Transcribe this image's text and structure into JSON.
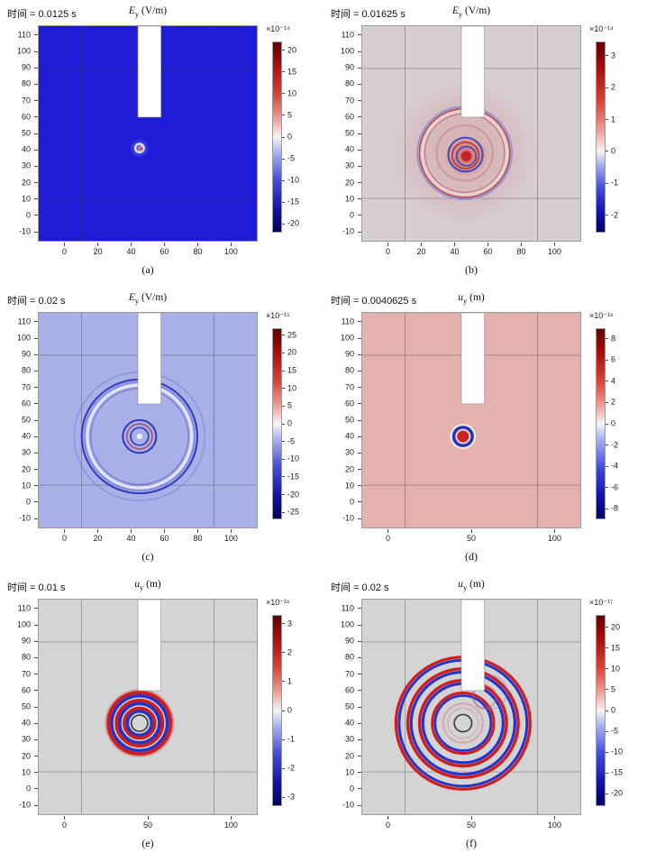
{
  "figure": {
    "background": "#ffffff"
  },
  "chart_data": [
    {
      "type": "heatmap",
      "panel": "a",
      "caption": "(a)",
      "time_label": "时间 = 0.0125 s",
      "field": {
        "symbol": "E",
        "sub": "y",
        "unit": " (V/m)"
      },
      "x_ticks": [
        0,
        20,
        40,
        60,
        80,
        100
      ],
      "y_ticks": [
        110,
        100,
        90,
        80,
        70,
        60,
        50,
        40,
        30,
        20,
        10,
        0,
        -10
      ],
      "x_range": [
        -16,
        116
      ],
      "y_range": [
        -16,
        116
      ],
      "bg": "#1e1cd6",
      "grid_x": [
        10,
        90
      ],
      "grid_y": [
        10,
        90
      ],
      "slot": {
        "x1": 44,
        "x2": 58,
        "y_bottom": 60
      },
      "wave_center": [
        45,
        40
      ],
      "colorbar": {
        "exp": "×10⁻¹⁴",
        "min": -22,
        "max": 22,
        "ticks": [
          20,
          15,
          10,
          5,
          0,
          -5,
          -10,
          -15,
          -20
        ]
      },
      "features": [
        {
          "t": "glow",
          "cx": 45,
          "cy": 41,
          "r": 6,
          "c": "130,160,255",
          "a": 0.5
        },
        {
          "t": "ring",
          "cx": 45,
          "cy": 41,
          "r": 2.6,
          "s": "#dfe6ff",
          "w": 1.3
        },
        {
          "t": "ring",
          "cx": 45.8,
          "cy": 40.6,
          "r": 1.3,
          "s": "#ff8a70",
          "w": 0.9
        }
      ]
    },
    {
      "type": "heatmap",
      "panel": "b",
      "caption": "(b)",
      "time_label": "时间 = 0.01625 s",
      "field": {
        "symbol": "E",
        "sub": "y",
        "unit": " (V/m)"
      },
      "x_ticks": [
        0,
        20,
        40,
        60,
        80,
        100
      ],
      "y_ticks": [
        110,
        100,
        90,
        80,
        70,
        60,
        50,
        40,
        30,
        20,
        10,
        0,
        -10
      ],
      "x_range": [
        -16,
        116
      ],
      "y_range": [
        -16,
        116
      ],
      "bg": "#d7ced4",
      "grid_x": [
        10,
        90
      ],
      "grid_y": [
        10,
        90
      ],
      "slot": {
        "x1": 44,
        "x2": 58,
        "y_bottom": 60
      },
      "wave_center": [
        46,
        38
      ],
      "colorbar": {
        "exp": "×10⁻¹⁴",
        "min": -2.55,
        "max": 3.45,
        "ticks": [
          3,
          2,
          1,
          0,
          -1,
          -2
        ]
      },
      "features": [
        {
          "t": "glow",
          "cx": 46,
          "cy": 38,
          "r": 46,
          "c": "215,125,118",
          "a": 0.4
        },
        {
          "t": "glow",
          "cx": 47,
          "cy": 36,
          "r": 13,
          "c": "205,62,55",
          "a": 0.55
        },
        {
          "t": "ring",
          "cx": 46,
          "cy": 38,
          "r": 28.6,
          "s": "#8a92d8",
          "w": 0.9
        },
        {
          "t": "ring",
          "cx": 46,
          "cy": 38,
          "r": 27.4,
          "s": "#b14a55",
          "w": 0.9
        },
        {
          "t": "ring",
          "cx": 46,
          "cy": 38,
          "r": 25.6,
          "s": "rgba(236,210,214,0.95)",
          "w": 1.6
        },
        {
          "t": "ring",
          "cx": 46,
          "cy": 38,
          "r": 24.2,
          "s": "rgba(177,74,85,0.5)",
          "w": 0.8
        },
        {
          "t": "ring",
          "cx": 46,
          "cy": 38,
          "r": 17,
          "s": "rgba(180,90,100,0.3)",
          "w": 1.2
        },
        {
          "t": "ring",
          "cx": 46.5,
          "cy": 37,
          "r": 10.4,
          "s": "#3a49c1",
          "w": 1.1
        },
        {
          "t": "ring",
          "cx": 46.5,
          "cy": 36.5,
          "r": 8.1,
          "s": "#c13a3a",
          "w": 1.0
        },
        {
          "t": "ring",
          "cx": 47,
          "cy": 36,
          "r": 5.9,
          "s": "#3a49c1",
          "w": 0.9
        },
        {
          "t": "dot",
          "cx": 47,
          "cy": 36,
          "r": 3.2,
          "f": "#c42525"
        }
      ]
    },
    {
      "type": "heatmap",
      "panel": "c",
      "caption": "(c)",
      "time_label": "时间 = 0.02 s",
      "field": {
        "symbol": "E",
        "sub": "y",
        "unit": " (V/m)"
      },
      "x_ticks": [
        0,
        20,
        40,
        60,
        80,
        100
      ],
      "y_ticks": [
        110,
        100,
        90,
        80,
        70,
        60,
        50,
        40,
        30,
        20,
        10,
        0,
        -10
      ],
      "x_range": [
        -16,
        116
      ],
      "y_range": [
        -16,
        116
      ],
      "bg": "#a9afe7",
      "grid_x": [
        10,
        90
      ],
      "grid_y": [
        10,
        90
      ],
      "slot": {
        "x1": 44,
        "x2": 58,
        "y_bottom": 60
      },
      "wave_center": [
        45,
        40
      ],
      "colorbar": {
        "exp": "×10⁻¹⁵",
        "min": -27,
        "max": 27,
        "ticks": [
          25,
          20,
          15,
          10,
          5,
          0,
          -5,
          -10,
          -15,
          -20,
          -25
        ]
      },
      "features": [
        {
          "t": "ring",
          "cx": 45,
          "cy": 40,
          "r": 39.5,
          "s": "rgba(60,70,180,0.22)",
          "w": 0.9
        },
        {
          "t": "ring",
          "cx": 45,
          "cy": 40,
          "r": 35,
          "s": "#2d3ab9",
          "w": 1.1
        },
        {
          "t": "ring",
          "cx": 45,
          "cy": 40,
          "r": 33.4,
          "s": "#7d88dd",
          "w": 0.9
        },
        {
          "t": "ring",
          "cx": 45,
          "cy": 40,
          "r": 31.6,
          "s": "rgba(238,238,248,0.85)",
          "w": 1.7
        },
        {
          "t": "ring",
          "cx": 45,
          "cy": 40,
          "r": 29.6,
          "s": "rgba(70,80,190,0.45)",
          "w": 0.9
        },
        {
          "t": "ring",
          "cx": 45,
          "cy": 40,
          "r": 10.1,
          "s": "#2d3ab9",
          "w": 1.1
        },
        {
          "t": "ring",
          "cx": 45,
          "cy": 40,
          "r": 7.7,
          "s": "#a5556a",
          "w": 0.9
        },
        {
          "t": "ring",
          "cx": 45,
          "cy": 40,
          "r": 5.4,
          "s": "#2d3ab9",
          "w": 0.9
        },
        {
          "t": "dot",
          "cx": 45,
          "cy": 40,
          "r": 1.7,
          "f": "#eef0fb"
        }
      ]
    },
    {
      "type": "heatmap",
      "panel": "d",
      "caption": "(d)",
      "time_label": "时间 = 0.0040625 s",
      "field": {
        "symbol": "u",
        "sub": "y",
        "unit": " (m)"
      },
      "x_ticks": [
        0,
        50,
        100
      ],
      "y_ticks": [
        110,
        100,
        90,
        80,
        70,
        60,
        50,
        40,
        30,
        20,
        10,
        0,
        -10
      ],
      "x_range": [
        -16,
        116
      ],
      "y_range": [
        -16,
        116
      ],
      "bg": "#e3b2ad",
      "grid_x": [
        10,
        90
      ],
      "grid_y": [
        10,
        90
      ],
      "slot": {
        "x1": 44,
        "x2": 58,
        "y_bottom": 60
      },
      "wave_center": [
        45,
        40
      ],
      "colorbar": {
        "exp": "×10⁻¹⁶",
        "min": -9,
        "max": 9,
        "ticks": [
          8,
          6,
          4,
          2,
          0,
          -2,
          -4,
          -6,
          -8
        ]
      },
      "features": [
        {
          "t": "ring",
          "cx": 45,
          "cy": 40,
          "r": 7.2,
          "s": "rgba(244,238,238,0.9)",
          "w": 1.2
        },
        {
          "t": "ring",
          "cx": 45,
          "cy": 40,
          "r": 5.6,
          "s": "#2330bb",
          "w": 1.9
        },
        {
          "t": "ring",
          "cx": 45,
          "cy": 40,
          "r": 4.3,
          "s": "#ead8d6",
          "w": 0.7
        },
        {
          "t": "dot",
          "cx": 45,
          "cy": 40,
          "r": 3.5,
          "f": "#c92222"
        }
      ]
    },
    {
      "type": "heatmap",
      "panel": "e",
      "caption": "(e)",
      "time_label": "时间 = 0.01 s",
      "field": {
        "symbol": "u",
        "sub": "y",
        "unit": " (m)"
      },
      "x_ticks": [
        0,
        50,
        100
      ],
      "y_ticks": [
        110,
        100,
        90,
        80,
        70,
        60,
        50,
        40,
        30,
        20,
        10,
        0,
        -10
      ],
      "x_range": [
        -16,
        116
      ],
      "y_range": [
        -16,
        116
      ],
      "bg": "#d4d4d4",
      "grid_x": [
        10,
        90
      ],
      "grid_y": [
        10,
        90
      ],
      "slot": {
        "x1": 44,
        "x2": 58,
        "y_bottom": 60
      },
      "wave_center": [
        45,
        40
      ],
      "colorbar": {
        "exp": "×10⁻¹⁶",
        "min": -3.3,
        "max": 3.3,
        "ticks": [
          3,
          2,
          1,
          0,
          -1,
          -2,
          -3
        ]
      },
      "features": [
        {
          "t": "ring",
          "cx": 45,
          "cy": 40,
          "r": 20.4,
          "s": "rgba(205,90,90,0.5)",
          "w": 1.1
        },
        {
          "t": "ring",
          "cx": 45,
          "cy": 40,
          "r": 18.8,
          "s": "#cc1f1f",
          "w": 2.2
        },
        {
          "t": "ring",
          "cx": 45,
          "cy": 40,
          "r": 16.8,
          "s": "#2433cc",
          "w": 1.9
        },
        {
          "t": "ring",
          "cx": 45,
          "cy": 40,
          "r": 13.9,
          "s": "#cc1f1f",
          "w": 2.2
        },
        {
          "t": "ring",
          "cx": 45,
          "cy": 40,
          "r": 12.0,
          "s": "#2433cc",
          "w": 1.9
        },
        {
          "t": "ring",
          "cx": 45,
          "cy": 40,
          "r": 9.1,
          "s": "#cc1f1f",
          "w": 2.2
        },
        {
          "t": "ring",
          "cx": 45,
          "cy": 40,
          "r": 7.3,
          "s": "#2433cc",
          "w": 1.8
        },
        {
          "t": "ring",
          "cx": 45,
          "cy": 40,
          "r": 5.0,
          "s": "#3c3c3c",
          "w": 0.9
        }
      ]
    },
    {
      "type": "heatmap",
      "panel": "f",
      "caption": "(f)",
      "time_label": "时间 = 0.02 s",
      "field": {
        "symbol": "u",
        "sub": "y",
        "unit": " (m)"
      },
      "x_ticks": [
        0,
        50,
        100
      ],
      "y_ticks": [
        110,
        100,
        90,
        80,
        70,
        60,
        50,
        40,
        30,
        20,
        10,
        0,
        -10
      ],
      "x_range": [
        -16,
        116
      ],
      "y_range": [
        -16,
        116
      ],
      "bg": "#d4d4d4",
      "grid_x": [
        10,
        90
      ],
      "grid_y": [
        10,
        90
      ],
      "slot": {
        "x1": 44,
        "x2": 58,
        "y_bottom": 60
      },
      "wave_center": [
        45,
        40
      ],
      "colorbar": {
        "exp": "×10⁻¹⁷",
        "min": -23,
        "max": 23,
        "ticks": [
          20,
          15,
          10,
          5,
          0,
          -5,
          -10,
          -15,
          -20
        ]
      },
      "features": [
        {
          "t": "ring",
          "cx": 45,
          "cy": 40,
          "r": 40.6,
          "s": "#cc2020",
          "w": 1.8
        },
        {
          "t": "ring",
          "cx": 45,
          "cy": 40,
          "r": 38.7,
          "s": "#2433cc",
          "w": 1.6
        },
        {
          "t": "ring",
          "cx": 45,
          "cy": 40,
          "r": 33.4,
          "s": "#cc2020",
          "w": 1.9
        },
        {
          "t": "ring",
          "cx": 45,
          "cy": 40,
          "r": 31.4,
          "s": "#2433cc",
          "w": 1.7
        },
        {
          "t": "ring",
          "cx": 45,
          "cy": 40,
          "r": 26.3,
          "s": "#cc2020",
          "w": 1.9
        },
        {
          "t": "ring",
          "cx": 45,
          "cy": 40,
          "r": 24.3,
          "s": "#2433cc",
          "w": 1.7
        },
        {
          "t": "ring",
          "cx": 45,
          "cy": 40,
          "r": 18.6,
          "s": "#cc2020",
          "w": 1.7
        },
        {
          "t": "ring",
          "cx": 45,
          "cy": 40,
          "r": 16.9,
          "s": "#2433cc",
          "w": 1.5
        },
        {
          "t": "ring",
          "cx": 45,
          "cy": 40,
          "r": 12.0,
          "s": "rgba(210,130,140,0.5)",
          "w": 1.2
        },
        {
          "t": "ring",
          "cx": 45,
          "cy": 40,
          "r": 9.2,
          "s": "rgba(210,130,140,0.38)",
          "w": 1.0
        },
        {
          "t": "ring",
          "cx": 58,
          "cy": 56,
          "r": 7.0,
          "s": "rgba(190,80,95,0.45)",
          "w": 1.0
        },
        {
          "t": "ring",
          "cx": 61,
          "cy": 59,
          "r": 10.5,
          "s": "rgba(120,95,200,0.3)",
          "w": 1.0
        },
        {
          "t": "ring",
          "cx": 45,
          "cy": 40,
          "r": 5.3,
          "s": "#3c3c3c",
          "w": 0.9
        }
      ]
    }
  ]
}
